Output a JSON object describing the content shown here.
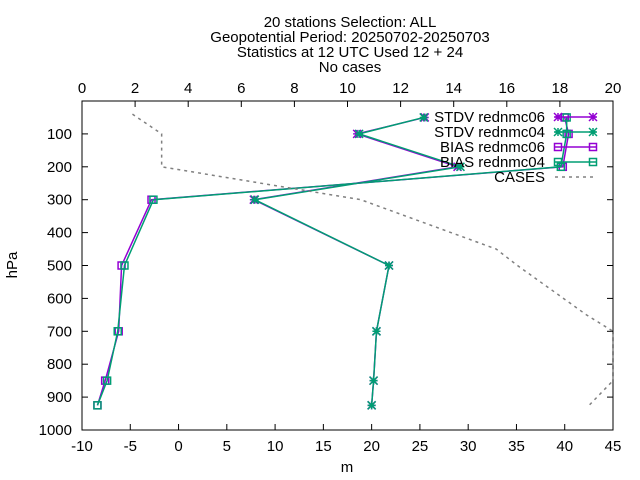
{
  "chart_data": {
    "type": "line",
    "title_lines": [
      "20 stations Selection: ALL",
      "Geopotential  Period: 20250702-20250703",
      "Statistics at 12 UTC  Used 12 + 24",
      "No cases"
    ],
    "xlabel": "m",
    "ylabel": "hPa",
    "x_ticks": [
      "-10",
      "-5",
      "0",
      "5",
      "10",
      "15",
      "20",
      "25",
      "30",
      "35",
      "40",
      "45"
    ],
    "x2_ticks": [
      "0",
      "2",
      "4",
      "6",
      "8",
      "10",
      "12",
      "14",
      "16",
      "18",
      "20"
    ],
    "y_ticks": [
      "100",
      "200",
      "300",
      "400",
      "500",
      "600",
      "700",
      "800",
      "900",
      "1000"
    ],
    "xlim": [
      -10,
      45
    ],
    "x2lim": [
      0,
      20
    ],
    "ylim": [
      1000,
      0
    ],
    "y_inverted": true,
    "grid": false,
    "legend_position": "top-right",
    "series": [
      {
        "name": "STDV rednmc06",
        "color": "#9400d3",
        "marker": "star",
        "axis": "bottom",
        "points": [
          [
            25.5,
            50
          ],
          [
            18.5,
            100
          ],
          [
            28.9,
            200
          ],
          [
            7.8,
            300
          ],
          [
            21.8,
            500
          ],
          [
            20.5,
            700
          ],
          [
            20.2,
            850
          ],
          [
            20.0,
            925
          ]
        ]
      },
      {
        "name": "STDV rednmc04",
        "color": "#009e73",
        "marker": "star",
        "axis": "bottom",
        "points": [
          [
            25.4,
            50
          ],
          [
            18.7,
            100
          ],
          [
            29.2,
            200
          ],
          [
            7.9,
            300
          ],
          [
            21.8,
            500
          ],
          [
            20.5,
            700
          ],
          [
            20.2,
            850
          ],
          [
            20.0,
            925
          ]
        ]
      },
      {
        "name": "BIAS rednmc06",
        "color": "#9400d3",
        "marker": "square",
        "axis": "bottom",
        "points": [
          [
            40.0,
            50
          ],
          [
            40.4,
            100
          ],
          [
            39.8,
            200
          ],
          [
            -2.8,
            300
          ],
          [
            -5.9,
            500
          ],
          [
            -6.2,
            700
          ],
          [
            -7.6,
            850
          ],
          [
            -8.4,
            925
          ]
        ]
      },
      {
        "name": "BIAS rednmc04",
        "color": "#009e73",
        "marker": "square",
        "axis": "bottom",
        "points": [
          [
            40.2,
            50
          ],
          [
            40.2,
            100
          ],
          [
            39.6,
            200
          ],
          [
            -2.6,
            300
          ],
          [
            -5.6,
            500
          ],
          [
            -6.3,
            700
          ],
          [
            -7.4,
            850
          ],
          [
            -8.4,
            925
          ]
        ]
      },
      {
        "name": "CASES",
        "color": "#808080",
        "dashed": true,
        "axis": "top",
        "points": [
          [
            1.9,
            40
          ],
          [
            3.0,
            100
          ],
          [
            3.0,
            200
          ],
          [
            10.5,
            300
          ],
          [
            15.6,
            450
          ],
          [
            16.4,
            500
          ],
          [
            19.0,
            650
          ],
          [
            20.0,
            700
          ],
          [
            20.0,
            850
          ],
          [
            19.1,
            925
          ]
        ]
      }
    ]
  }
}
